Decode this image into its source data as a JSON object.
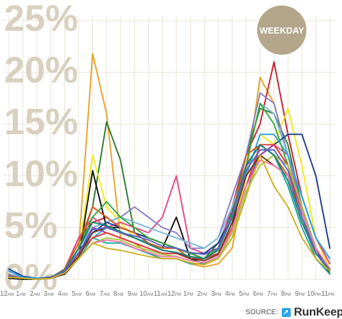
{
  "badge": {
    "label": "WEEKDAY",
    "color": "#b3a68a"
  },
  "source": {
    "label": "SOURCE:",
    "brand": "RunKeeper"
  },
  "chart_data": {
    "type": "line",
    "title": "",
    "xlabel": "",
    "ylabel": "",
    "ylim": [
      0,
      25
    ],
    "grid": true,
    "y_ticks": [
      "0%",
      "5%",
      "10%",
      "15%",
      "20%",
      "25%"
    ],
    "categories": [
      {
        "num": "12",
        "ampm": "AM"
      },
      {
        "num": "1",
        "ampm": "AM"
      },
      {
        "num": "2",
        "ampm": "AM"
      },
      {
        "num": "3",
        "ampm": "AM"
      },
      {
        "num": "4",
        "ampm": "AM"
      },
      {
        "num": "5",
        "ampm": "AM"
      },
      {
        "num": "6",
        "ampm": "AM"
      },
      {
        "num": "7",
        "ampm": "AM"
      },
      {
        "num": "8",
        "ampm": "AM"
      },
      {
        "num": "9",
        "ampm": "AM"
      },
      {
        "num": "10",
        "ampm": "AM"
      },
      {
        "num": "11",
        "ampm": "AM"
      },
      {
        "num": "12",
        "ampm": "PM"
      },
      {
        "num": "1",
        "ampm": "PM"
      },
      {
        "num": "2",
        "ampm": "PM"
      },
      {
        "num": "3",
        "ampm": "PM"
      },
      {
        "num": "4",
        "ampm": "PM"
      },
      {
        "num": "5",
        "ampm": "PM"
      },
      {
        "num": "6",
        "ampm": "PM"
      },
      {
        "num": "7",
        "ampm": "PM"
      },
      {
        "num": "8",
        "ampm": "PM"
      },
      {
        "num": "9",
        "ampm": "PM"
      },
      {
        "num": "10",
        "ampm": "PM"
      },
      {
        "num": "11",
        "ampm": "PM"
      }
    ],
    "series": [
      {
        "color": "#e8a22a",
        "values": [
          0.2,
          0.1,
          0.1,
          0.1,
          0.8,
          3,
          21.8,
          16,
          4,
          3.5,
          2.5,
          2,
          2,
          1.5,
          1.2,
          1.5,
          3,
          10,
          19.5,
          17,
          12,
          6,
          2,
          0.5
        ]
      },
      {
        "color": "#c8202f",
        "values": [
          0.3,
          0.1,
          0,
          0.1,
          1,
          4,
          5.5,
          6,
          5,
          4.5,
          4,
          3.5,
          3,
          2.5,
          2,
          3,
          7,
          12,
          15,
          21,
          14,
          8,
          4,
          1.5
        ]
      },
      {
        "color": "#2e7d2e",
        "values": [
          0.2,
          0.1,
          0,
          0.1,
          0.8,
          3,
          7,
          15.2,
          11.5,
          4.5,
          4,
          3.5,
          3,
          2.5,
          2,
          3.5,
          6.5,
          12,
          16.5,
          16,
          13,
          7,
          3,
          1
        ]
      },
      {
        "color": "#f2ea1a",
        "values": [
          0.1,
          0,
          0,
          0.1,
          0.5,
          2.5,
          12,
          7,
          5.5,
          4,
          3.5,
          3,
          3,
          2,
          1.5,
          2,
          4.5,
          10,
          14,
          13,
          16.5,
          11,
          4,
          1
        ]
      },
      {
        "color": "#111111",
        "values": [
          0.1,
          0,
          0,
          0.1,
          0.5,
          2,
          10.5,
          5,
          5,
          4.5,
          3.5,
          3,
          6,
          2,
          1.5,
          2,
          5,
          11,
          13,
          12,
          11,
          7,
          3,
          0.5
        ]
      },
      {
        "color": "#e24a86",
        "values": [
          0.2,
          0.1,
          0,
          0.1,
          1,
          4,
          6,
          5,
          5.5,
          5,
          4.5,
          6,
          10,
          3,
          2.5,
          3,
          7,
          11,
          12,
          13,
          12,
          8,
          4,
          1.5
        ]
      },
      {
        "color": "#8c7fc2",
        "values": [
          0.3,
          0.1,
          0,
          0.1,
          0.8,
          3,
          5,
          5.5,
          6,
          7,
          6,
          5,
          4.5,
          3,
          3,
          4,
          8,
          12,
          18,
          17,
          12,
          7,
          3,
          1
        ]
      },
      {
        "color": "#7ab8d9",
        "values": [
          0.5,
          0.2,
          0.1,
          0.2,
          1,
          3,
          5,
          5.5,
          6,
          5.5,
          5,
          4.5,
          4,
          3.5,
          3,
          4,
          7,
          11,
          17,
          16,
          12,
          8,
          4,
          2
        ]
      },
      {
        "color": "#1e3f8f",
        "values": [
          1,
          0.3,
          0.1,
          0.2,
          0.8,
          2.5,
          4.5,
          5.5,
          5,
          4.5,
          4,
          3.5,
          3,
          2.5,
          2.5,
          3.5,
          6,
          10,
          12,
          13,
          14,
          14,
          10,
          3
        ]
      },
      {
        "color": "#2aa3e8",
        "values": [
          0.8,
          0.2,
          0.1,
          0.1,
          0.8,
          2.5,
          4,
          5,
          4.5,
          4,
          3.5,
          3,
          3,
          2.5,
          2,
          3,
          6,
          10,
          14,
          14,
          12,
          8,
          4,
          2
        ]
      },
      {
        "color": "#d85a1a",
        "values": [
          0.4,
          0.1,
          0,
          0.1,
          1,
          3.5,
          7,
          6,
          5,
          4.5,
          3.5,
          3,
          3,
          2,
          2,
          3,
          6,
          12,
          13,
          12,
          10,
          6,
          2.5,
          1
        ]
      },
      {
        "color": "#22a9a0",
        "values": [
          0.2,
          0.1,
          0,
          0.1,
          0.8,
          2,
          4,
          3.5,
          3.5,
          3,
          2.5,
          2,
          2,
          1.5,
          1.5,
          2,
          4,
          8,
          13,
          12,
          9,
          5,
          2,
          0.5
        ]
      },
      {
        "color": "#3aa63a",
        "values": [
          0.3,
          0.1,
          0,
          0.1,
          0.8,
          3,
          6,
          7.5,
          6,
          5,
          4,
          3.5,
          3,
          2.5,
          2,
          3,
          6,
          11,
          17,
          15,
          11,
          6,
          3,
          1
        ]
      },
      {
        "color": "#9a3fb0",
        "values": [
          0.2,
          0.1,
          0,
          0.1,
          0.7,
          2.5,
          5,
          4.5,
          4,
          3.5,
          3,
          2.5,
          2.5,
          2,
          2,
          2.5,
          5,
          9,
          12,
          13,
          11,
          7,
          3,
          1
        ]
      },
      {
        "color": "#e83a3a",
        "values": [
          0.3,
          0.1,
          0,
          0.1,
          0.8,
          2.5,
          4,
          4.5,
          4,
          3.5,
          3,
          2.5,
          2.5,
          2,
          2,
          2.5,
          5,
          9,
          13,
          13,
          11,
          6.5,
          3,
          1
        ]
      },
      {
        "color": "#a8c83a",
        "values": [
          0.2,
          0.1,
          0,
          0.1,
          0.6,
          2,
          3.5,
          4,
          3.8,
          3.2,
          2.8,
          2.4,
          2.2,
          1.8,
          1.6,
          2,
          4.5,
          8.5,
          11,
          12,
          11,
          7,
          3,
          1
        ]
      },
      {
        "color": "#6a3a1a",
        "values": [
          0.2,
          0.1,
          0,
          0.1,
          0.7,
          2.2,
          4.5,
          5,
          4.5,
          4,
          3.4,
          2.8,
          2.6,
          2,
          1.8,
          2.4,
          5.5,
          10,
          12,
          11,
          10,
          6,
          2.5,
          0.8
        ]
      },
      {
        "color": "#f07ab0",
        "values": [
          0.2,
          0.1,
          0,
          0.1,
          0.6,
          2,
          3.5,
          3.8,
          3.6,
          3,
          2.6,
          2.2,
          2.2,
          1.8,
          1.6,
          2.2,
          4.8,
          9,
          11.5,
          11,
          10,
          6.5,
          3,
          1
        ]
      },
      {
        "color": "#15857a",
        "values": [
          0.3,
          0.1,
          0,
          0.1,
          0.9,
          3,
          5.5,
          5.2,
          4.6,
          4,
          3.4,
          2.8,
          2.6,
          2.2,
          2,
          2.8,
          6,
          11,
          13,
          12,
          9.5,
          5.5,
          2.5,
          0.8
        ]
      },
      {
        "color": "#5a66c8",
        "values": [
          0.3,
          0.1,
          0,
          0.1,
          0.8,
          2.6,
          4.8,
          5,
          4.5,
          4.2,
          3.8,
          3.2,
          3,
          2.6,
          2.4,
          3,
          6.2,
          10.5,
          12.5,
          12.5,
          10.5,
          6,
          2.6,
          0.9
        ]
      },
      {
        "color": "#d0b020",
        "values": [
          0.2,
          0.1,
          0,
          0.1,
          0.6,
          2,
          3.5,
          3,
          2.8,
          2.5,
          2.2,
          2,
          2,
          1.6,
          1.4,
          2,
          4,
          8,
          12,
          9,
          7,
          4,
          2,
          0.8
        ]
      }
    ]
  }
}
